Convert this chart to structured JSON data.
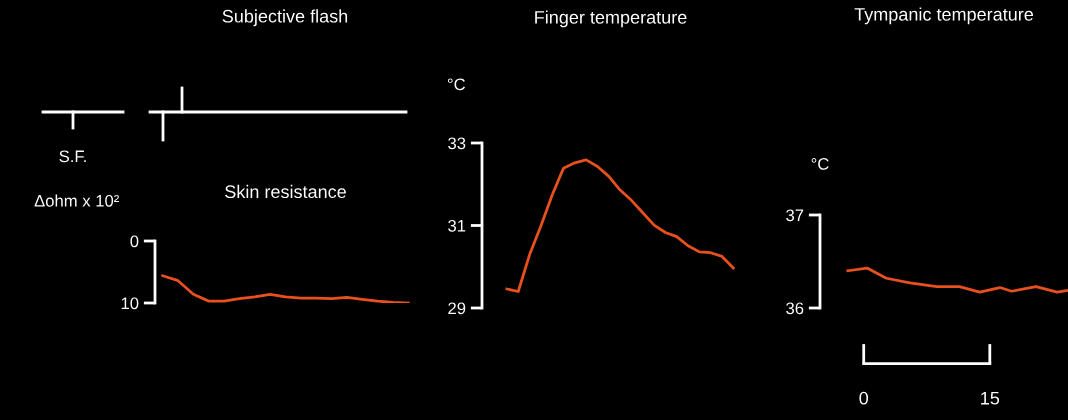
{
  "chart_data": [
    {
      "type": "other",
      "title": "Subjective flash",
      "annotations": [
        "S.F."
      ]
    },
    {
      "type": "line",
      "title": "Skin resistance",
      "ylabel": "Δohm x 10²",
      "ylim": [
        10,
        0
      ],
      "yticks": [
        0,
        10
      ],
      "categories": [
        null,
        null,
        null,
        null,
        null,
        null,
        null,
        null,
        null,
        null,
        null,
        null,
        null,
        null,
        null,
        null,
        null
      ],
      "series": [
        {
          "color": "#e8501e",
          "values": [
            5.6,
            6.4,
            8.6,
            9.7,
            9.7,
            9.3,
            9.0,
            8.6,
            9.0,
            9.2,
            9.2,
            9.3,
            9.1,
            9.4,
            9.7,
            9.9,
            10.0
          ]
        }
      ]
    },
    {
      "type": "line",
      "title": "Finger temperature",
      "ylabel": "°C",
      "ylim": [
        29,
        33
      ],
      "yticks": [
        29,
        31,
        33
      ],
      "categories": [
        null,
        null,
        null,
        null,
        null,
        null,
        null,
        null,
        null,
        null,
        null,
        null,
        null,
        null,
        null,
        null,
        null,
        null,
        null,
        null,
        null
      ],
      "series": [
        {
          "color": "#e8501e",
          "values": [
            29.46,
            29.4,
            30.29,
            30.99,
            31.74,
            32.39,
            32.52,
            32.59,
            32.43,
            32.19,
            31.86,
            31.61,
            31.31,
            31.01,
            30.83,
            30.73,
            30.51,
            30.36,
            30.34,
            30.25,
            29.97
          ]
        }
      ]
    },
    {
      "type": "line",
      "title": "Tympanic temperature",
      "ylabel": "°C",
      "xlim": [
        -5.2,
        24.3
      ],
      "xticks": [
        0,
        15
      ],
      "ylim": [
        36,
        37
      ],
      "yticks": [
        36,
        37
      ],
      "series": [
        {
          "color": "#e8501e",
          "x": [
            -1.9,
            0.4,
            2.7,
            5.5,
            8.7,
            11.4,
            13.8,
            16.2,
            17.6,
            20.5,
            23.0,
            24.3
          ],
          "values": [
            36.4,
            36.43,
            36.32,
            36.27,
            36.23,
            36.23,
            36.17,
            36.22,
            36.18,
            36.23,
            36.17,
            36.19
          ]
        }
      ]
    }
  ]
}
